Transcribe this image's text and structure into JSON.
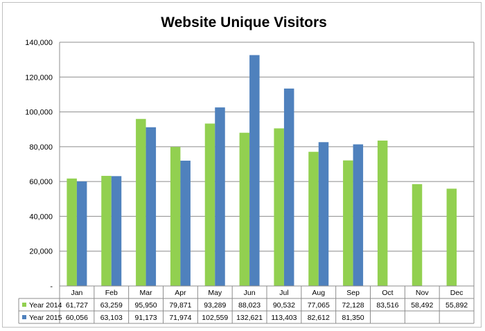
{
  "chart_data": {
    "type": "bar",
    "title": "Website Unique Visitors",
    "categories": [
      "Jan",
      "Feb",
      "Mar",
      "Apr",
      "May",
      "Jun",
      "Jul",
      "Aug",
      "Sep",
      "Oct",
      "Nov",
      "Dec"
    ],
    "series": [
      {
        "name": "Year 2014",
        "color": "#92d050",
        "values": [
          61727,
          63259,
          95950,
          79871,
          93289,
          88023,
          90532,
          77065,
          72128,
          83516,
          58492,
          55892
        ],
        "labels": [
          "61,727",
          "63,259",
          "95,950",
          "79,871",
          "93,289",
          "88,023",
          "90,532",
          "77,065",
          "72,128",
          "83,516",
          "58,492",
          "55,892"
        ]
      },
      {
        "name": "Year 2015",
        "color": "#4f81bd",
        "values": [
          60056,
          63103,
          91173,
          71974,
          102559,
          132621,
          113403,
          82612,
          81350,
          null,
          null,
          null
        ],
        "labels": [
          "60,056",
          "63,103",
          "91,173",
          "71,974",
          "102,559",
          "132,621",
          "113,403",
          "82,612",
          "81,350",
          "",
          "",
          ""
        ]
      }
    ],
    "ylim": [
      0,
      140000
    ],
    "yticks": [
      0,
      20000,
      40000,
      60000,
      80000,
      100000,
      120000,
      140000
    ],
    "ytick_labels": [
      "-",
      "20,000",
      "40,000",
      "60,000",
      "80,000",
      "100,000",
      "120,000",
      "140,000"
    ],
    "grid": true,
    "legend": "data-table"
  }
}
